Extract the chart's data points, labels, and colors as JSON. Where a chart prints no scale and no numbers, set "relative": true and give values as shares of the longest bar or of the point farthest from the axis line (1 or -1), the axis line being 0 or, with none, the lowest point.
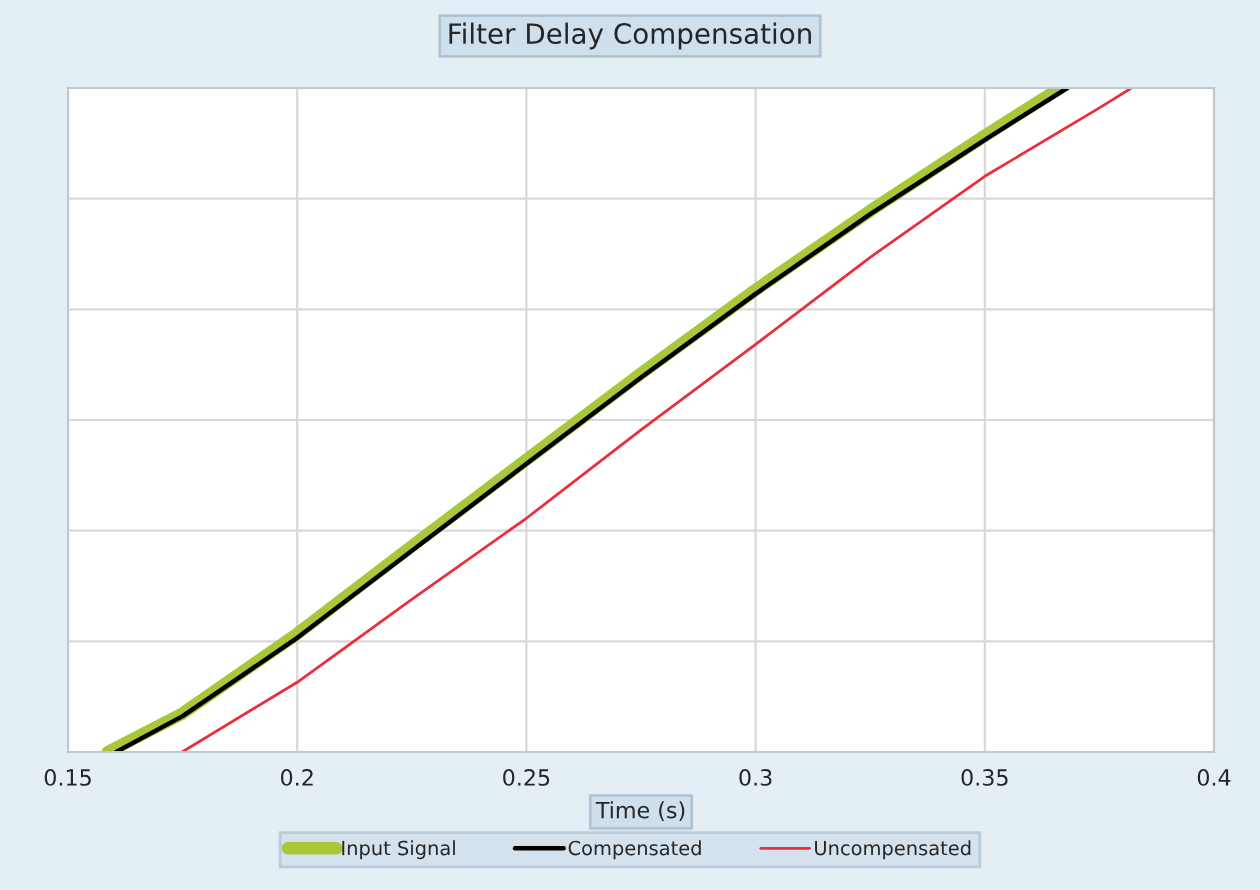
{
  "chart_data": {
    "type": "line",
    "title": "Filter Delay Compensation",
    "xlabel": "Time (s)",
    "relative": true,
    "xlim": [
      0.15,
      0.4
    ],
    "xticks": [
      0.15,
      0.2,
      0.25,
      0.3,
      0.35,
      0.4
    ],
    "grid": true,
    "legend": "bottom",
    "marker": "none",
    "line_style": "solid",
    "series": [
      {
        "name": "Input Signal",
        "color": "#a8c83a",
        "x": [
          0.1587,
          0.175,
          0.2,
          0.225,
          0.25,
          0.275,
          0.3,
          0.325,
          0.35,
          0.3664
        ],
        "values": [
          0,
          0.058,
          0.178,
          0.31,
          0.44,
          0.57,
          0.696,
          0.815,
          0.928,
          1.0
        ]
      },
      {
        "name": "Compensated",
        "color": "#000000",
        "x": [
          0.1605,
          0.175,
          0.2,
          0.225,
          0.25,
          0.275,
          0.3,
          0.325,
          0.35,
          0.368
        ],
        "values": [
          0,
          0.054,
          0.172,
          0.303,
          0.434,
          0.564,
          0.69,
          0.81,
          0.922,
          1.0
        ]
      },
      {
        "name": "Uncompensated",
        "color": "#e8303a",
        "x": [
          0.1749,
          0.2,
          0.225,
          0.25,
          0.275,
          0.3,
          0.325,
          0.35,
          0.375,
          0.382
        ],
        "values": [
          0,
          0.105,
          0.23,
          0.352,
          0.485,
          0.614,
          0.745,
          0.867,
          0.97,
          1.0
        ]
      }
    ]
  }
}
